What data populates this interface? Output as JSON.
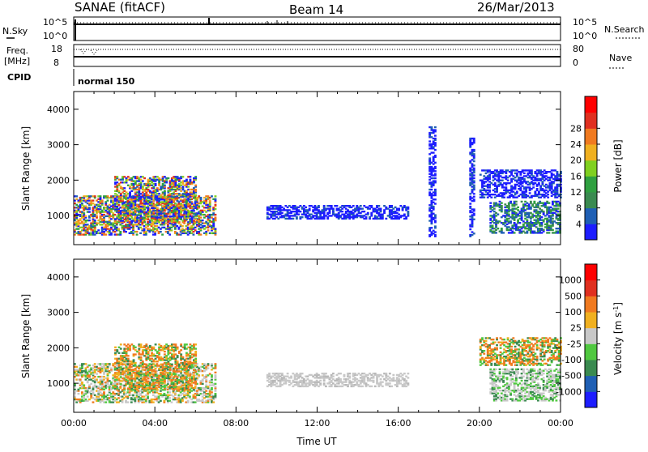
{
  "header": {
    "station": "SANAE (fitACF)",
    "beam": "Beam 14",
    "date": "26/Mar/2013"
  },
  "aux_panels": {
    "nsky_label": "N.Sky",
    "nsky_ticks": [
      "10^5",
      "10^0"
    ],
    "nsearch_label": "N.Search",
    "nsearch_ticks": [
      "10^5",
      "10^0"
    ],
    "freq_label_1": "Freq.",
    "freq_label_2": "[MHz]",
    "freq_ticks": [
      "18",
      "8"
    ],
    "nave_label": "Nave",
    "nave_ticks": [
      "80",
      "0"
    ],
    "cpid_label": "CPID",
    "cpid_value": "normal 150"
  },
  "chart_data": [
    {
      "type": "heatmap",
      "name": "power",
      "xlabel": "",
      "ylabel": "Slant Range [km]",
      "xlim": [
        0,
        24
      ],
      "ylim": [
        180,
        4500
      ],
      "yticks": [
        "1000",
        "2000",
        "3000",
        "4000"
      ],
      "colorbar": {
        "label": "Power [dB]",
        "ticks": [
          "4",
          "8",
          "12",
          "16",
          "20",
          "24",
          "28"
        ],
        "colors": [
          "#1d1dff",
          "#1f5fb4",
          "#3a8a50",
          "#2fa040",
          "#80d020",
          "#f0b020",
          "#f07a20",
          "#e03020",
          "#ff0000"
        ]
      },
      "echo_regions": [
        {
          "t_start": 0.0,
          "t_end": 7.0,
          "r_low": 450,
          "r_high": 1550,
          "level": "mixed-high"
        },
        {
          "t_start": 2.0,
          "t_end": 6.0,
          "r_low": 800,
          "r_high": 2100,
          "level": "mixed-high"
        },
        {
          "t_start": 9.5,
          "t_end": 16.5,
          "r_low": 900,
          "r_high": 1300,
          "level": "low"
        },
        {
          "t_start": 17.5,
          "t_end": 17.8,
          "r_low": 400,
          "r_high": 3500,
          "level": "low"
        },
        {
          "t_start": 19.5,
          "t_end": 19.7,
          "r_low": 400,
          "r_high": 3200,
          "level": "low"
        },
        {
          "t_start": 20.0,
          "t_end": 24.0,
          "r_low": 1500,
          "r_high": 2300,
          "level": "low"
        },
        {
          "t_start": 20.5,
          "t_end": 24.0,
          "r_low": 500,
          "r_high": 1400,
          "level": "low-mid"
        }
      ]
    },
    {
      "type": "heatmap",
      "name": "velocity",
      "xlabel": "Time UT",
      "ylabel": "Slant Range [km]",
      "xlim": [
        0,
        24
      ],
      "ylim": [
        180,
        4500
      ],
      "xticks": [
        "00:00",
        "04:00",
        "08:00",
        "12:00",
        "16:00",
        "20:00",
        "00:00"
      ],
      "yticks": [
        "1000",
        "2000",
        "3000",
        "4000"
      ],
      "colorbar": {
        "label": "Velocity [m s",
        "label_sup": "-1",
        "label_close": "]",
        "ticks": [
          "1000",
          "500",
          "100",
          "25",
          "-25",
          "-100",
          "-500",
          "-1000"
        ],
        "colors": [
          "#1d1dff",
          "#1f5fb4",
          "#3a8a50",
          "#50c840",
          "#c8c8c8",
          "#f0b020",
          "#f07a20",
          "#e03020",
          "#ff0000"
        ]
      },
      "echo_regions": [
        {
          "t_start": 0.0,
          "t_end": 7.0,
          "r_low": 450,
          "r_high": 1550,
          "level": "mixed"
        },
        {
          "t_start": 2.0,
          "t_end": 6.0,
          "r_low": 800,
          "r_high": 2100,
          "level": "orange-green"
        },
        {
          "t_start": 9.5,
          "t_end": 16.5,
          "r_low": 900,
          "r_high": 1300,
          "level": "gray"
        },
        {
          "t_start": 20.0,
          "t_end": 24.0,
          "r_low": 1500,
          "r_high": 2300,
          "level": "orange-green"
        },
        {
          "t_start": 20.5,
          "t_end": 24.0,
          "r_low": 500,
          "r_high": 1400,
          "level": "gray-green"
        }
      ]
    }
  ]
}
